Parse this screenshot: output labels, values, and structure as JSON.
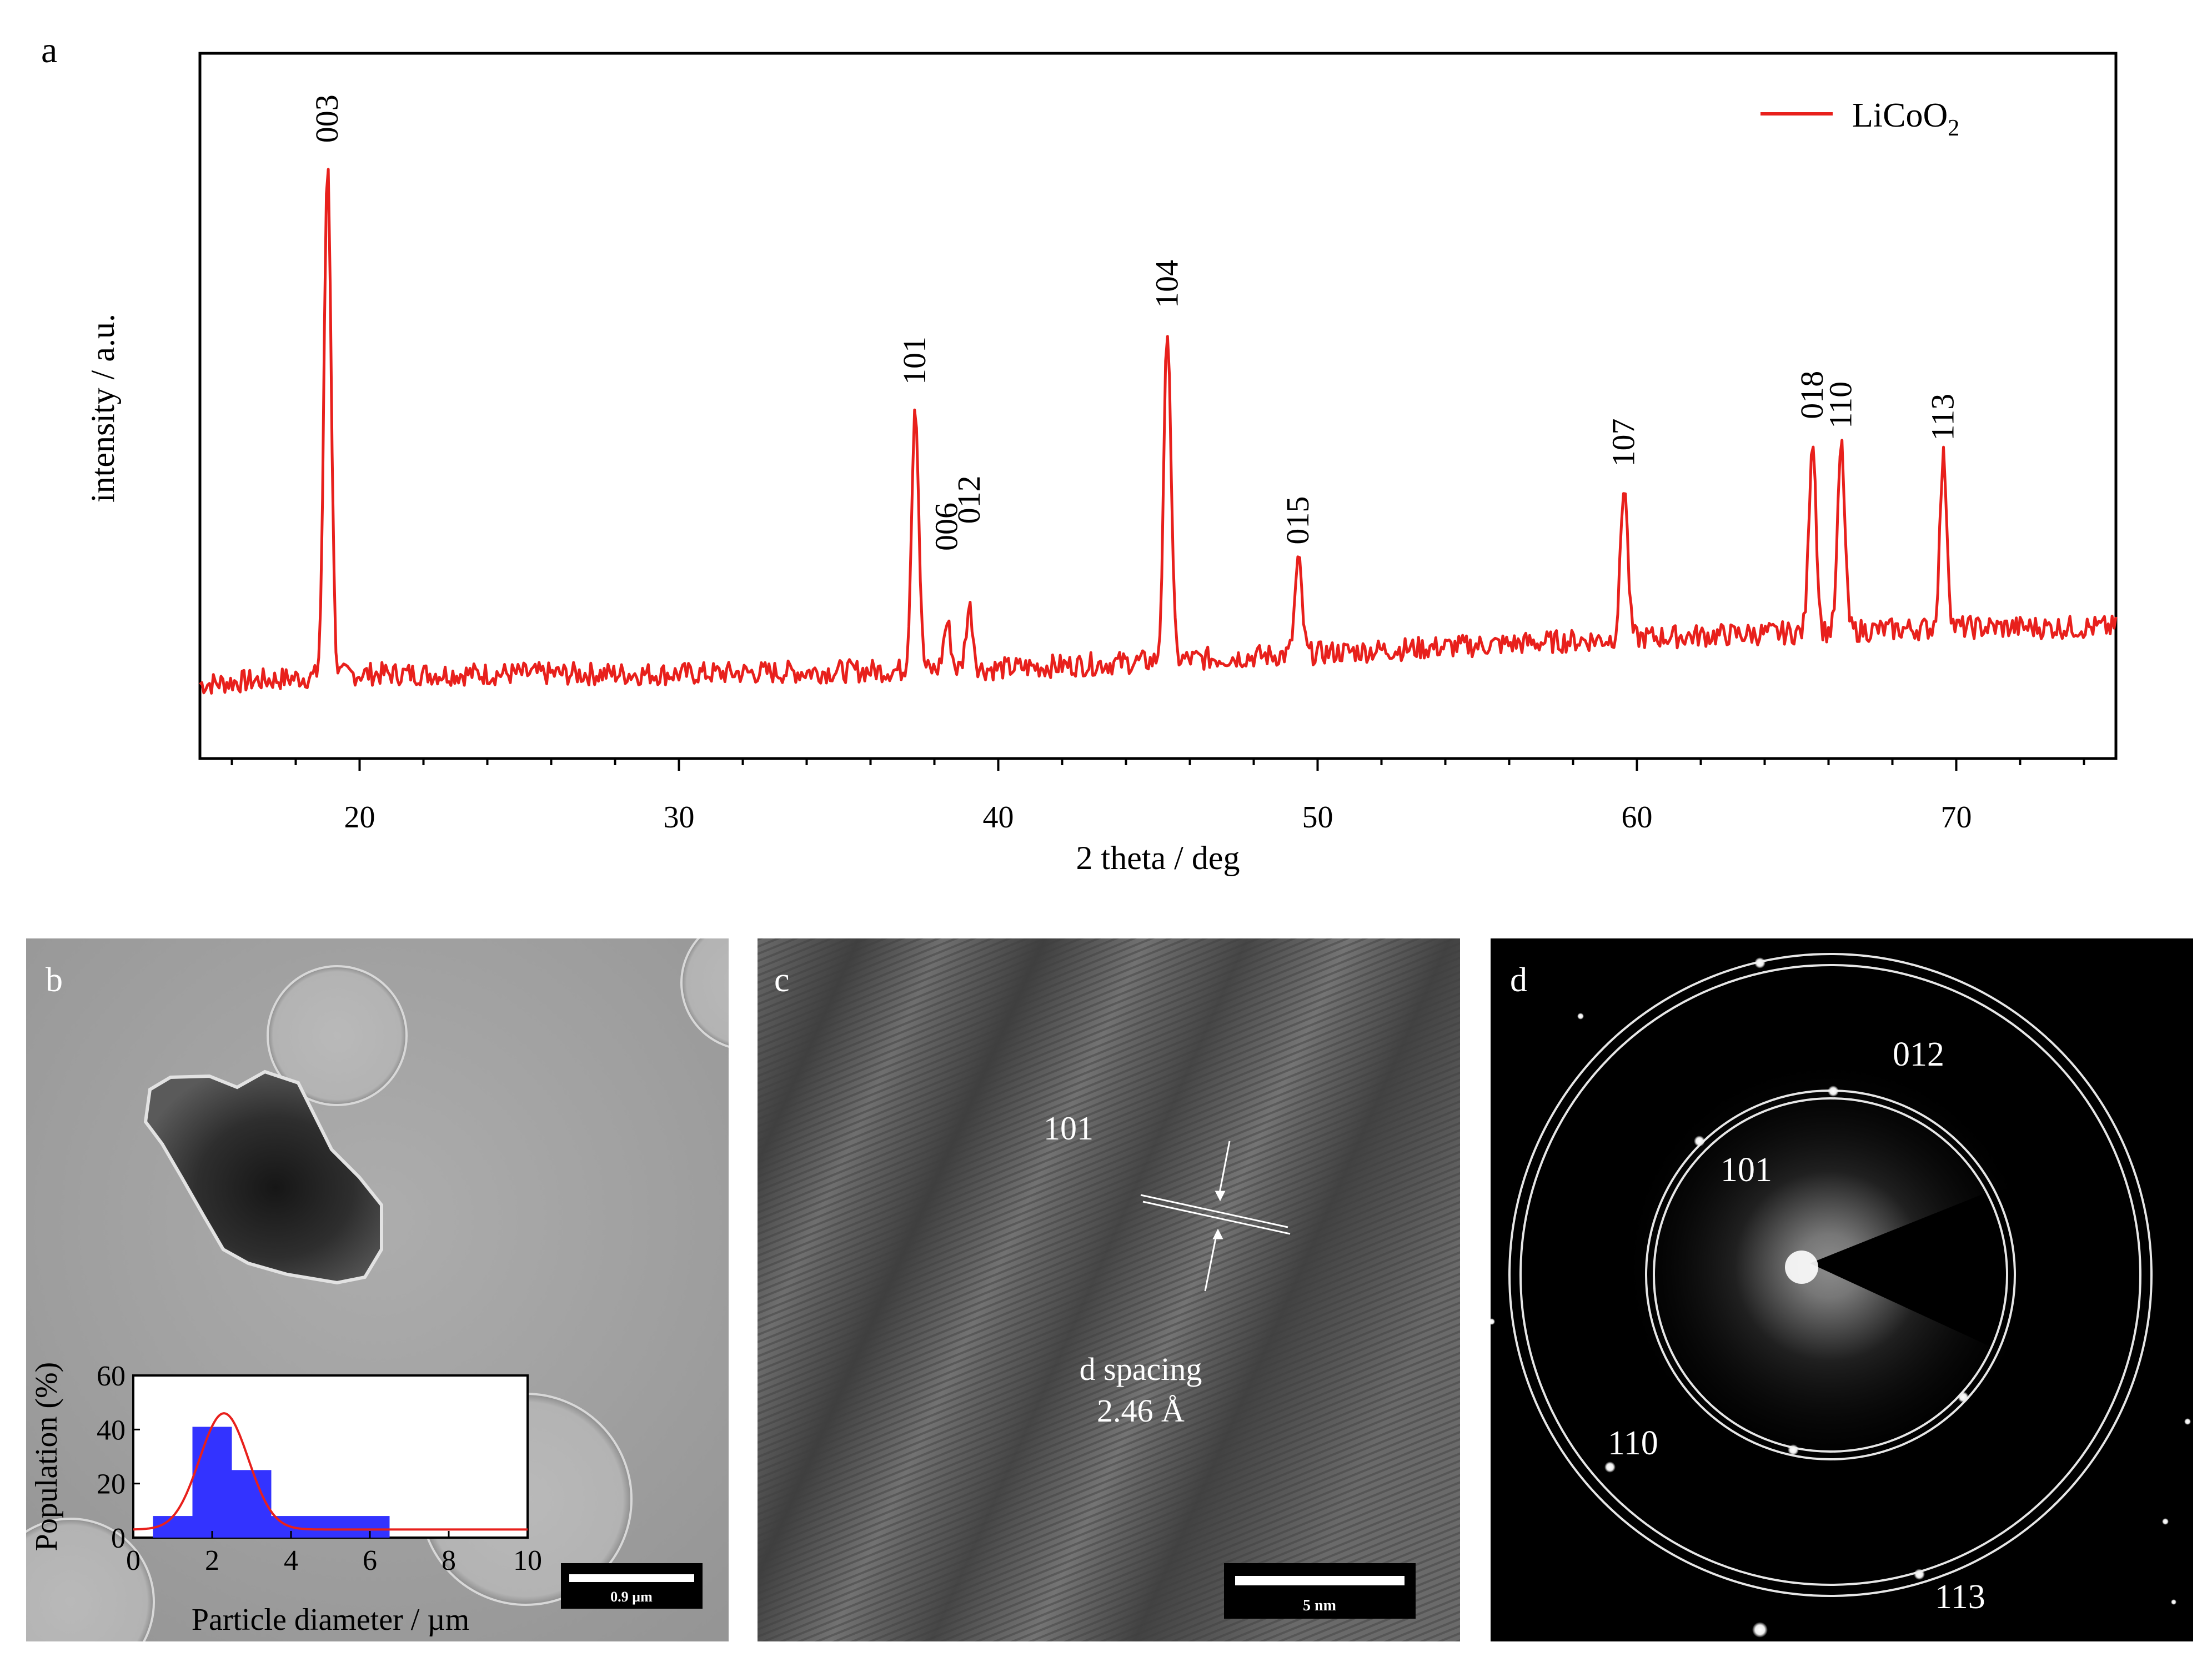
{
  "panels": {
    "a": {
      "label": "a"
    },
    "b": {
      "label": "b",
      "scalebar": "0.9 µm"
    },
    "c": {
      "label": "c",
      "lattice_label": "101",
      "d_spacing_label": "d spacing",
      "d_spacing_value": "2.46 Å",
      "scalebar": "5 nm"
    },
    "d": {
      "label": "d",
      "rings": [
        "012",
        "101",
        "110",
        "113"
      ]
    }
  },
  "colors": {
    "xrd_line": "#e8201c",
    "hist_bar": "#3333ff",
    "fit_line": "#e8201c"
  },
  "chart_data": [
    {
      "type": "line",
      "title": "",
      "xlabel": "2 theta / deg",
      "ylabel": "intensity / a.u.",
      "xlim": [
        15,
        75
      ],
      "xticks": [
        20,
        30,
        40,
        50,
        60,
        70
      ],
      "legend": {
        "position": "top-right",
        "entries": [
          "LiCoO2"
        ]
      },
      "series": [
        {
          "name": "LiCoO2",
          "color": "#e8201c"
        }
      ],
      "peaks": [
        {
          "label": "003",
          "x": 19.0,
          "y": 1.0
        },
        {
          "label": "101",
          "x": 37.4,
          "y": 0.52
        },
        {
          "label": "006",
          "x": 38.4,
          "y": 0.09
        },
        {
          "label": "012",
          "x": 39.1,
          "y": 0.12
        },
        {
          "label": "104",
          "x": 45.3,
          "y": 0.65
        },
        {
          "label": "015",
          "x": 49.4,
          "y": 0.18
        },
        {
          "label": "107",
          "x": 59.6,
          "y": 0.3
        },
        {
          "label": "018",
          "x": 65.5,
          "y": 0.38
        },
        {
          "label": "110",
          "x": 66.4,
          "y": 0.36
        },
        {
          "label": "113",
          "x": 69.6,
          "y": 0.33
        }
      ],
      "baseline": [
        [
          15,
          0.03
        ],
        [
          20,
          0.05
        ],
        [
          30,
          0.05
        ],
        [
          40,
          0.06
        ],
        [
          50,
          0.09
        ],
        [
          60,
          0.12
        ],
        [
          70,
          0.14
        ],
        [
          75,
          0.14
        ]
      ]
    },
    {
      "type": "bar",
      "xlabel": "Particle diameter / µm",
      "ylabel": "Population (%)",
      "xlim": [
        0,
        10
      ],
      "ylim": [
        0,
        60
      ],
      "xticks": [
        0,
        2,
        4,
        6,
        8,
        10
      ],
      "yticks": [
        0,
        20,
        40,
        60
      ],
      "bins": [
        {
          "from": 0.5,
          "to": 1.5,
          "value": 8
        },
        {
          "from": 1.5,
          "to": 2.5,
          "value": 41
        },
        {
          "from": 2.5,
          "to": 3.5,
          "value": 25
        },
        {
          "from": 3.5,
          "to": 6.5,
          "value": 8
        }
      ],
      "fit": {
        "type": "gaussian",
        "center": 2.3,
        "amplitude": 43,
        "sigma": 0.62,
        "offset": 3
      }
    }
  ]
}
